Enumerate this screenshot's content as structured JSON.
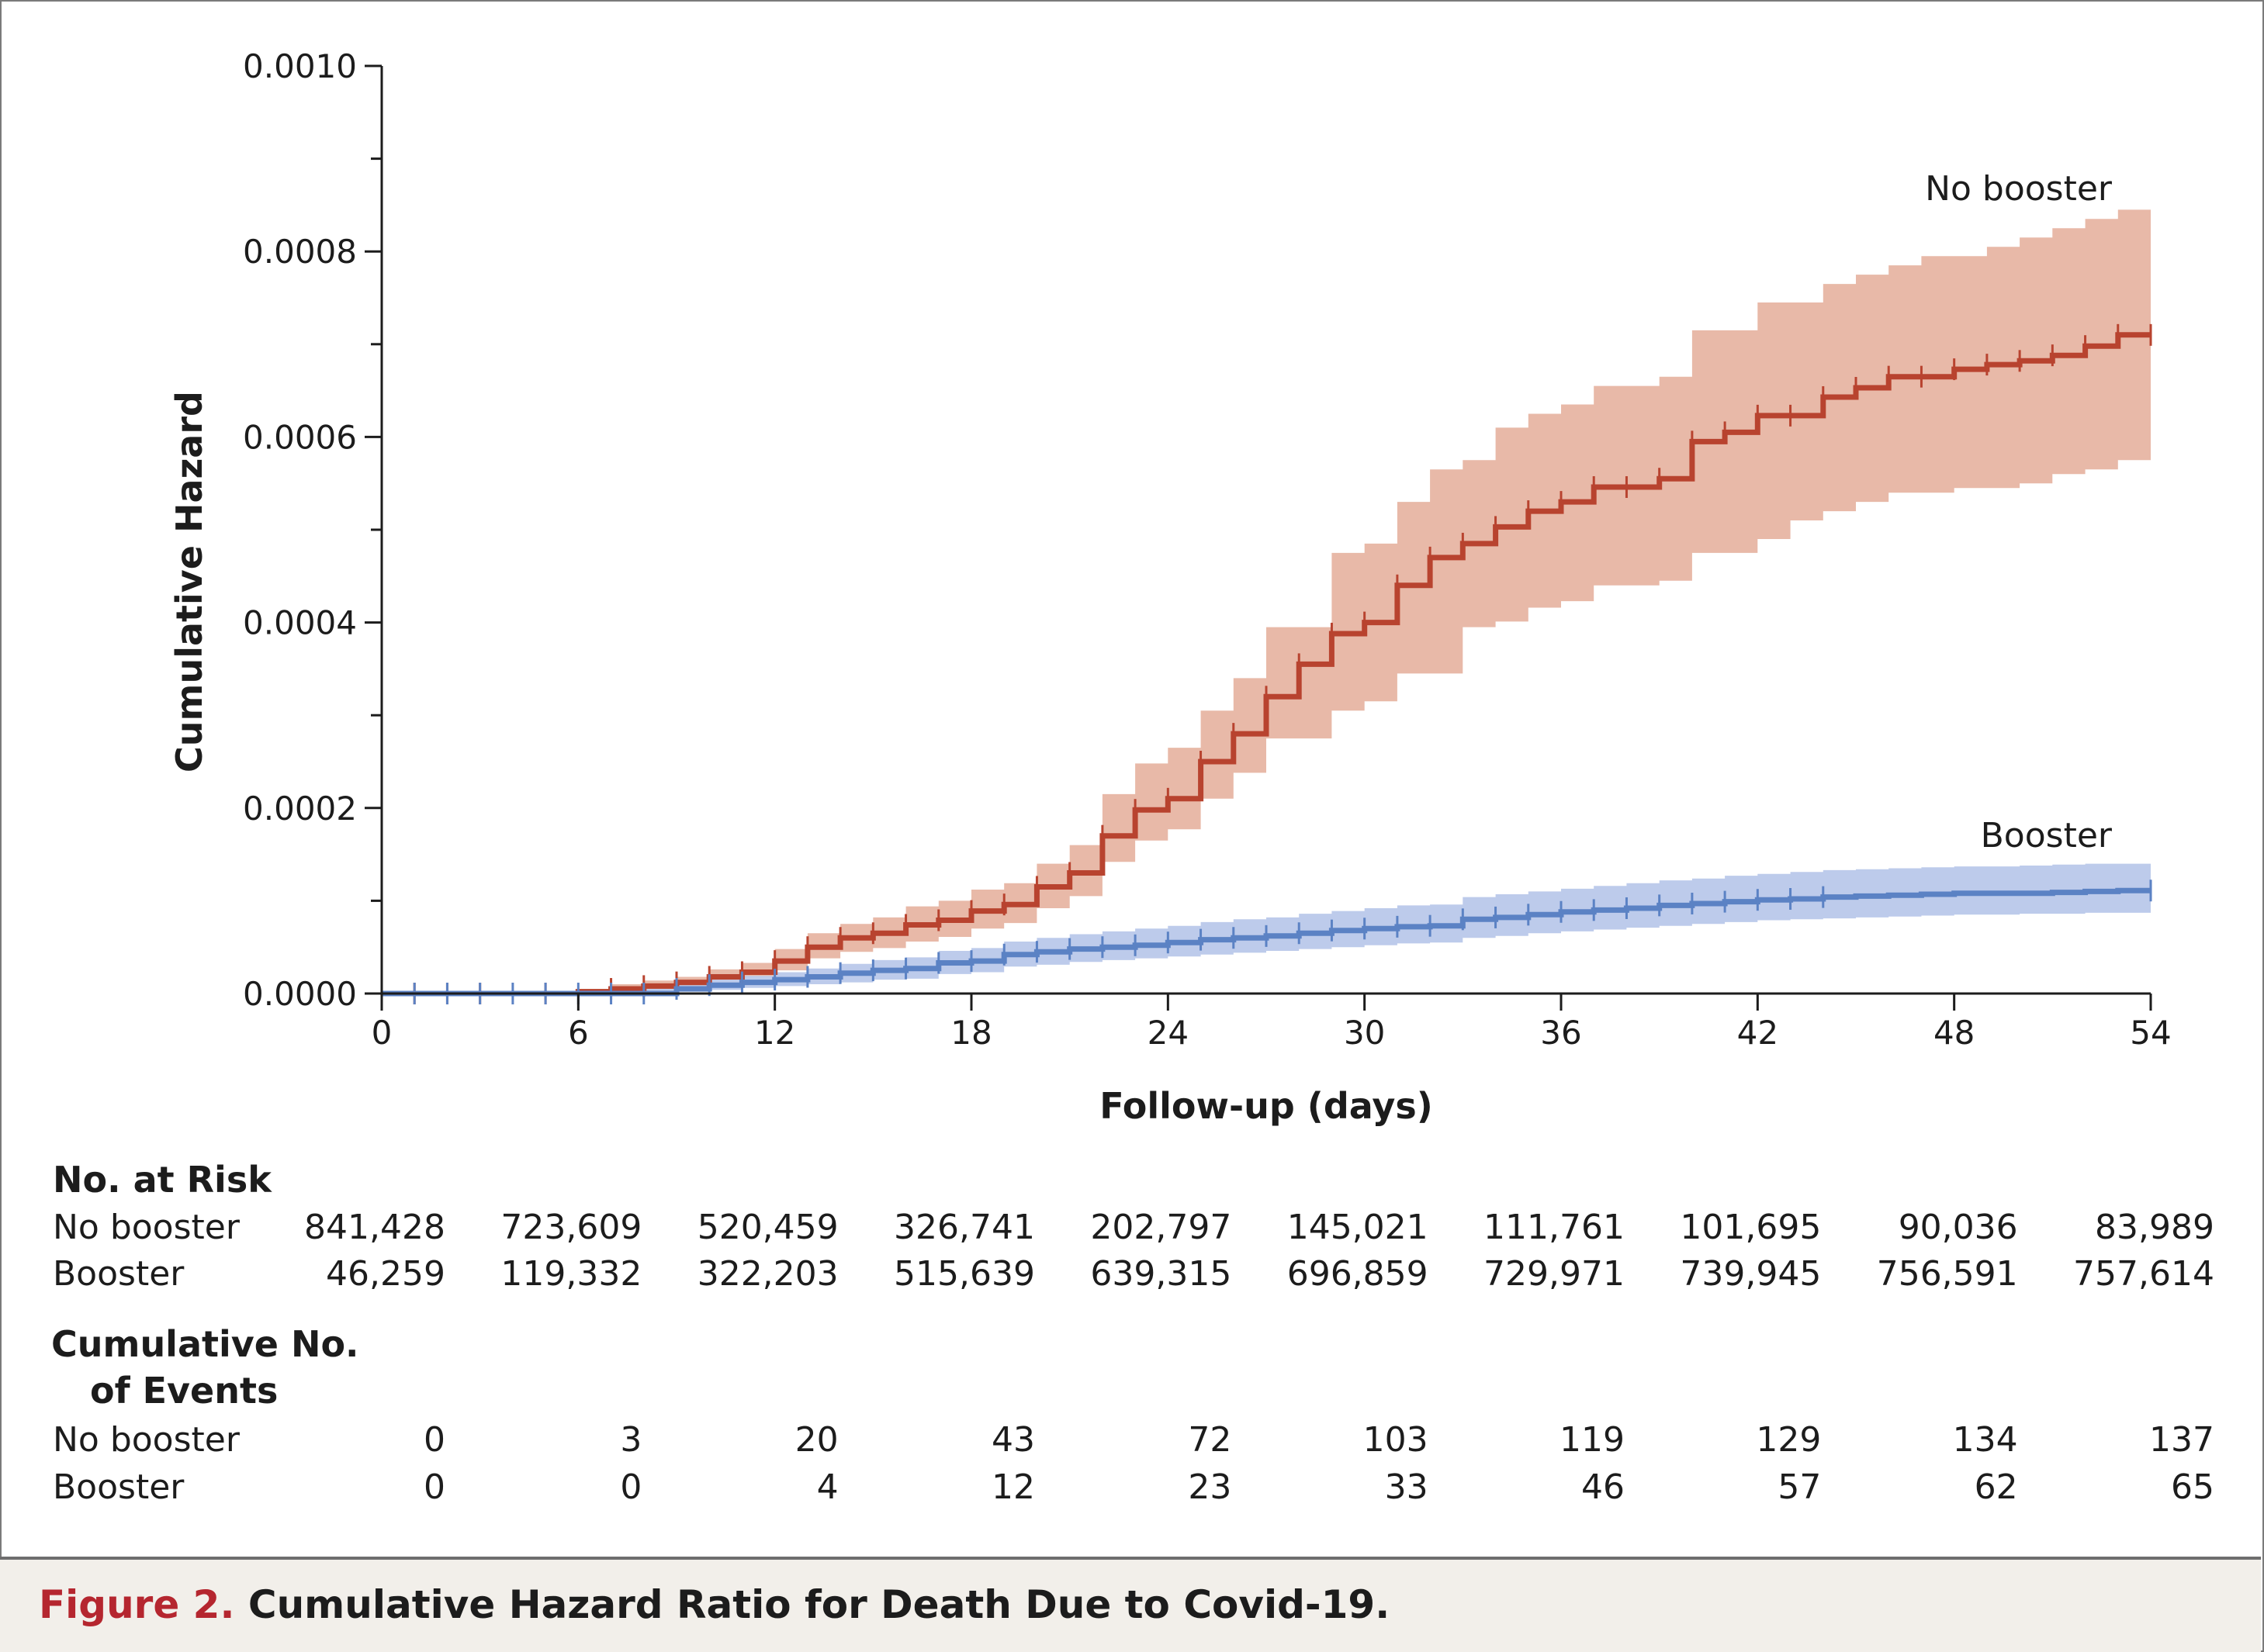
{
  "chart_data": {
    "type": "line",
    "title": "",
    "xlabel": "Follow-up (days)",
    "ylabel": "Cumulative Hazard",
    "xlim": [
      0,
      54
    ],
    "ylim": [
      0,
      0.001
    ],
    "x_ticks": [
      "0",
      "6",
      "12",
      "18",
      "24",
      "30",
      "36",
      "42",
      "48",
      "54"
    ],
    "y_ticks": [
      "0.0000",
      "0.0002",
      "0.0004",
      "0.0006",
      "0.0008",
      "0.0010"
    ],
    "grid": false,
    "series": [
      {
        "name": "No booster",
        "color": "#b8432f",
        "band_color": "#e8b9a8",
        "step": true,
        "x": [
          0,
          1,
          2,
          3,
          4,
          5,
          6,
          7,
          8,
          9,
          10,
          11,
          12,
          13,
          14,
          15,
          16,
          17,
          18,
          19,
          20,
          21,
          22,
          23,
          24,
          25,
          26,
          27,
          28,
          29,
          30,
          31,
          32,
          33,
          34,
          35,
          36,
          37,
          38,
          39,
          40,
          41,
          42,
          43,
          44,
          45,
          46,
          47,
          48,
          49,
          50,
          51,
          52,
          53,
          54
        ],
        "y": [
          0,
          0,
          0,
          0,
          0,
          0,
          2e-06,
          5e-06,
          8e-06,
          1.2e-05,
          1.8e-05,
          2.3e-05,
          3.5e-05,
          5e-05,
          6e-05,
          6.5e-05,
          7.4e-05,
          7.9e-05,
          8.9e-05,
          9.6e-05,
          0.000115,
          0.00013,
          0.00017,
          0.000198,
          0.00021,
          0.00025,
          0.00028,
          0.00032,
          0.000355,
          0.000388,
          0.0004,
          0.00044,
          0.00047,
          0.000485,
          0.000503,
          0.00052,
          0.00053,
          0.000546,
          0.000546,
          0.000555,
          0.000595,
          0.000605,
          0.000623,
          0.000623,
          0.000643,
          0.000653,
          0.000665,
          0.000665,
          0.000673,
          0.000678,
          0.000682,
          0.000688,
          0.000698,
          0.00071,
          0.00071
        ],
        "lower": [
          0,
          0,
          0,
          0,
          0,
          0,
          0,
          1e-06,
          3e-06,
          6e-06,
          1.1e-05,
          1.5e-05,
          2.5e-05,
          3.8e-05,
          4.5e-05,
          4.9e-05,
          5.6e-05,
          6.1e-05,
          7e-05,
          7.6e-05,
          9.2e-05,
          0.000105,
          0.000142,
          0.000165,
          0.000177,
          0.00021,
          0.000238,
          0.000275,
          0.000275,
          0.000305,
          0.000315,
          0.000345,
          0.000345,
          0.000395,
          0.000401,
          0.000416,
          0.000423,
          0.00044,
          0.00044,
          0.000445,
          0.000475,
          0.000475,
          0.00049,
          0.00051,
          0.00052,
          0.00053,
          0.00054,
          0.00054,
          0.000545,
          0.000545,
          0.00055,
          0.00056,
          0.000565,
          0.000575,
          0.000575
        ],
        "upper": [
          0,
          0,
          0,
          0,
          0,
          0,
          5e-06,
          1e-05,
          1.4e-05,
          1.8e-05,
          2.6e-05,
          3.3e-05,
          4.8e-05,
          6.5e-05,
          7.5e-05,
          8.2e-05,
          9.4e-05,
          0.0001,
          0.000112,
          0.000119,
          0.00014,
          0.00016,
          0.000215,
          0.000248,
          0.000265,
          0.000305,
          0.00034,
          0.000395,
          0.000395,
          0.000475,
          0.000485,
          0.00053,
          0.000565,
          0.000575,
          0.00061,
          0.000625,
          0.000635,
          0.000655,
          0.000655,
          0.000665,
          0.000715,
          0.000715,
          0.000745,
          0.000745,
          0.000765,
          0.000775,
          0.000785,
          0.000795,
          0.000795,
          0.000805,
          0.000815,
          0.000825,
          0.000835,
          0.000845,
          0.000845
        ]
      },
      {
        "name": "Booster",
        "color": "#5b82c4",
        "band_color": "#bdcbeb",
        "step": true,
        "x": [
          0,
          1,
          2,
          3,
          4,
          5,
          6,
          7,
          8,
          9,
          10,
          11,
          12,
          13,
          14,
          15,
          16,
          17,
          18,
          19,
          20,
          21,
          22,
          23,
          24,
          25,
          26,
          27,
          28,
          29,
          30,
          31,
          32,
          33,
          34,
          35,
          36,
          37,
          38,
          39,
          40,
          41,
          42,
          43,
          44,
          45,
          46,
          47,
          48,
          49,
          50,
          51,
          52,
          53,
          54
        ],
        "y": [
          0,
          0,
          0,
          0,
          0,
          0,
          0,
          0,
          0,
          5e-06,
          9e-06,
          1.2e-05,
          1.5e-05,
          1.8e-05,
          2.2e-05,
          2.5e-05,
          2.7e-05,
          3.3e-05,
          3.5e-05,
          4.2e-05,
          4.5e-05,
          4.8e-05,
          5e-05,
          5.2e-05,
          5.5e-05,
          5.8e-05,
          6e-05,
          6.2e-05,
          6.5e-05,
          6.8e-05,
          7e-05,
          7.2e-05,
          7.3e-05,
          8e-05,
          8.2e-05,
          8.5e-05,
          8.8e-05,
          9e-05,
          9.2e-05,
          9.5e-05,
          9.7e-05,
          9.9e-05,
          0.000101,
          0.000102,
          0.000104,
          0.000105,
          0.000106,
          0.000107,
          0.000108,
          0.000108,
          0.000108,
          0.000109,
          0.00011,
          0.000111,
          0.000111
        ],
        "lower": [
          0,
          0,
          0,
          0,
          0,
          0,
          0,
          0,
          0,
          2e-06,
          4e-06,
          6e-06,
          8e-06,
          1e-05,
          1.2e-05,
          1.5e-05,
          1.6e-05,
          2.1e-05,
          2.3e-05,
          2.9e-05,
          3.1e-05,
          3.4e-05,
          3.6e-05,
          3.8e-05,
          4e-05,
          4.2e-05,
          4.4e-05,
          4.6e-05,
          4.8e-05,
          5e-05,
          5.2e-05,
          5.4e-05,
          5.5e-05,
          6e-05,
          6.2e-05,
          6.5e-05,
          6.7e-05,
          6.9e-05,
          7.1e-05,
          7.3e-05,
          7.5e-05,
          7.7e-05,
          7.9e-05,
          8e-05,
          8.1e-05,
          8.2e-05,
          8.3e-05,
          8.4e-05,
          8.5e-05,
          8.5e-05,
          8.6e-05,
          8.6e-05,
          8.7e-05,
          8.7e-05,
          8.7e-05
        ],
        "upper": [
          0,
          0,
          0,
          0,
          0,
          0,
          0,
          2e-06,
          5e-06,
          9e-06,
          1.5e-05,
          1.9e-05,
          2.3e-05,
          2.7e-05,
          3.2e-05,
          3.6e-05,
          3.9e-05,
          4.6e-05,
          4.9e-05,
          5.6e-05,
          6e-05,
          6.4e-05,
          6.7e-05,
          7e-05,
          7.3e-05,
          7.7e-05,
          8e-05,
          8.2e-05,
          8.6e-05,
          8.9e-05,
          9.2e-05,
          9.5e-05,
          9.6e-05,
          0.000104,
          0.000107,
          0.00011,
          0.000113,
          0.000116,
          0.000119,
          0.000122,
          0.000124,
          0.000127,
          0.000129,
          0.000131,
          0.000133,
          0.000134,
          0.000135,
          0.000136,
          0.000137,
          0.000137,
          0.000138,
          0.000139,
          0.00014,
          0.00014,
          0.00014
        ]
      }
    ],
    "censor_marks": {
      "No booster": [
        0,
        1,
        2,
        3,
        5,
        7,
        8,
        9,
        10,
        11,
        12,
        13,
        14,
        15,
        16,
        17,
        18,
        19,
        20,
        21,
        22,
        23,
        24,
        25,
        26,
        27,
        28,
        29,
        30,
        31,
        32,
        33,
        34,
        35,
        36,
        37,
        38,
        39,
        40,
        41,
        42,
        43,
        44,
        45,
        46,
        47,
        48,
        49,
        50,
        51,
        52,
        53,
        54
      ],
      "Booster": [
        0,
        1,
        2,
        3,
        4,
        5,
        6,
        7,
        8,
        9,
        10,
        11,
        12,
        13,
        14,
        15,
        16,
        17,
        18,
        19,
        20,
        21,
        22,
        23,
        24,
        25,
        26,
        27,
        28,
        29,
        30,
        31,
        32,
        33,
        34,
        35,
        36,
        37,
        38,
        39,
        40,
        41,
        42,
        43,
        44,
        54
      ]
    }
  },
  "series_labels": {
    "no_booster": "No booster",
    "booster": "Booster"
  },
  "risk_table": {
    "title": "No. at Risk",
    "rows": [
      {
        "label": "No booster",
        "values": [
          "841,428",
          "723,609",
          "520,459",
          "326,741",
          "202,797",
          "145,021",
          "111,761",
          "101,695",
          "90,036",
          "83,989"
        ]
      },
      {
        "label": "Booster",
        "values": [
          "46,259",
          "119,332",
          "322,203",
          "515,639",
          "639,315",
          "696,859",
          "729,971",
          "739,945",
          "756,591",
          "757,614"
        ]
      }
    ]
  },
  "events_table": {
    "title_line1": "Cumulative No.",
    "title_line2": "of Events",
    "rows": [
      {
        "label": "No booster",
        "values": [
          "0",
          "3",
          "20",
          "43",
          "72",
          "103",
          "119",
          "129",
          "134",
          "137"
        ]
      },
      {
        "label": "Booster",
        "values": [
          "0",
          "0",
          "4",
          "12",
          "23",
          "33",
          "46",
          "57",
          "62",
          "65"
        ]
      }
    ]
  },
  "caption": {
    "figure_label": "Figure 2.",
    "text": "Cumulative Hazard Ratio for Death Due to Covid-19."
  }
}
